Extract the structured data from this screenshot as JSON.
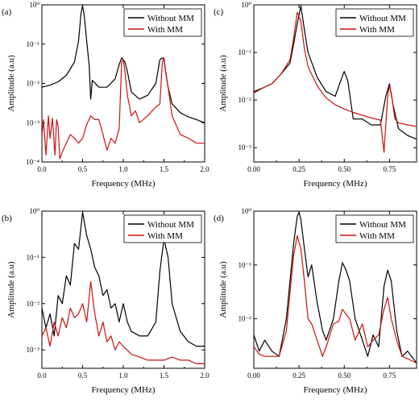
{
  "figure": {
    "xlabel": "Frequency (MHz)",
    "ylabel": "Amplitude (a.u)",
    "legend": [
      "Without MM",
      "With MM"
    ],
    "colors": {
      "without": "#000000",
      "with": "#cc1111"
    }
  },
  "chart_data": [
    {
      "panel": "(a)",
      "type": "line",
      "yscale": "log",
      "xlim": [
        0,
        2.0
      ],
      "ylim": [
        0.0001,
        1
      ],
      "xticks": [
        "0.0",
        "0.5",
        "1.0",
        "1.5",
        "2.0"
      ],
      "xtick_values": [
        0,
        0.5,
        1.0,
        1.5,
        2.0
      ],
      "yticks": [
        "10⁰",
        "10⁻¹",
        "10⁻²",
        "10⁻³",
        "10⁻⁴"
      ],
      "ytick_values": [
        1,
        0.1,
        0.01,
        0.001,
        0.0001
      ],
      "legend_position": "top-right",
      "series": [
        {
          "name": "Without MM",
          "color": "#000000",
          "x": [
            0.0,
            0.1,
            0.2,
            0.3,
            0.4,
            0.45,
            0.48,
            0.5,
            0.52,
            0.55,
            0.58,
            0.6,
            0.62,
            0.7,
            0.8,
            0.9,
            0.95,
            0.98,
            1.0,
            1.02,
            1.05,
            1.1,
            1.2,
            1.3,
            1.4,
            1.45,
            1.48,
            1.5,
            1.52,
            1.55,
            1.6,
            1.7,
            1.8,
            1.9,
            2.0
          ],
          "y": [
            0.008,
            0.009,
            0.011,
            0.016,
            0.035,
            0.12,
            0.6,
            0.95,
            0.55,
            0.12,
            0.03,
            0.004,
            0.012,
            0.008,
            0.008,
            0.013,
            0.03,
            0.045,
            0.04,
            0.035,
            0.02,
            0.006,
            0.004,
            0.005,
            0.01,
            0.04,
            0.045,
            0.04,
            0.02,
            0.008,
            0.003,
            0.0018,
            0.0014,
            0.0012,
            0.001
          ]
        },
        {
          "name": "With MM",
          "color": "#cc1111",
          "x": [
            0.0,
            0.02,
            0.05,
            0.08,
            0.1,
            0.13,
            0.16,
            0.18,
            0.2,
            0.22,
            0.25,
            0.3,
            0.35,
            0.4,
            0.45,
            0.5,
            0.55,
            0.6,
            0.65,
            0.7,
            0.75,
            0.8,
            0.85,
            0.9,
            0.95,
            0.98,
            1.0,
            1.02,
            1.05,
            1.1,
            1.15,
            1.2,
            1.3,
            1.4,
            1.45,
            1.48,
            1.5,
            1.52,
            1.55,
            1.6,
            1.7,
            1.8,
            1.9,
            2.0
          ],
          "y": [
            0.00045,
            0.0012,
            0.00015,
            0.0015,
            0.0004,
            0.0013,
            0.00015,
            0.0012,
            0.0008,
            0.00012,
            0.00018,
            0.0003,
            0.0005,
            0.0004,
            0.0003,
            0.0004,
            0.0009,
            0.0015,
            0.0012,
            0.0012,
            0.0005,
            0.0002,
            0.0004,
            0.0003,
            0.0007,
            0.035,
            0.04,
            0.02,
            0.005,
            0.0015,
            0.002,
            0.001,
            0.0015,
            0.0025,
            0.003,
            0.035,
            0.045,
            0.02,
            0.008,
            0.0015,
            0.0005,
            0.0004,
            0.0003,
            0.0003
          ]
        }
      ]
    },
    {
      "panel": "(b)",
      "type": "line",
      "yscale": "log",
      "xlim": [
        0,
        2.0
      ],
      "ylim": [
        0.0004,
        1
      ],
      "xticks": [
        "0.0",
        "0.5",
        "1.0",
        "1.5",
        "2.0"
      ],
      "xtick_values": [
        0,
        0.5,
        1.0,
        1.5,
        2.0
      ],
      "yticks": [
        "10⁰",
        "10⁻¹",
        "10⁻²",
        "10⁻³"
      ],
      "ytick_values": [
        1,
        0.1,
        0.01,
        0.001
      ],
      "legend_position": "top-right",
      "series": [
        {
          "name": "Without MM",
          "color": "#000000",
          "x": [
            0.0,
            0.05,
            0.1,
            0.15,
            0.2,
            0.25,
            0.3,
            0.35,
            0.4,
            0.45,
            0.5,
            0.55,
            0.6,
            0.65,
            0.7,
            0.75,
            0.8,
            0.85,
            0.9,
            0.95,
            1.0,
            1.05,
            1.1,
            1.2,
            1.3,
            1.4,
            1.45,
            1.5,
            1.55,
            1.6,
            1.7,
            1.8,
            1.9,
            2.0
          ],
          "y": [
            0.008,
            0.003,
            0.006,
            0.002,
            0.015,
            0.01,
            0.04,
            0.025,
            0.2,
            0.15,
            0.95,
            0.3,
            0.15,
            0.06,
            0.04,
            0.015,
            0.02,
            0.008,
            0.01,
            0.004,
            0.01,
            0.004,
            0.0025,
            0.002,
            0.002,
            0.004,
            0.05,
            0.25,
            0.1,
            0.01,
            0.0025,
            0.0015,
            0.0012,
            0.0012
          ]
        },
        {
          "name": "With MM",
          "color": "#cc1111",
          "x": [
            0.0,
            0.05,
            0.1,
            0.15,
            0.2,
            0.25,
            0.3,
            0.35,
            0.4,
            0.45,
            0.5,
            0.55,
            0.6,
            0.65,
            0.7,
            0.75,
            0.8,
            0.85,
            0.9,
            0.95,
            1.0,
            1.1,
            1.2,
            1.3,
            1.4,
            1.5,
            1.6,
            1.7,
            1.8,
            1.9,
            2.0
          ],
          "y": [
            0.002,
            0.003,
            0.0012,
            0.004,
            0.002,
            0.005,
            0.003,
            0.008,
            0.005,
            0.006,
            0.01,
            0.004,
            0.03,
            0.006,
            0.002,
            0.004,
            0.0015,
            0.002,
            0.001,
            0.0015,
            0.0012,
            0.0008,
            0.0007,
            0.0006,
            0.0006,
            0.0006,
            0.0007,
            0.0006,
            0.0006,
            0.0005,
            0.0005
          ]
        }
      ]
    },
    {
      "panel": "(c)",
      "type": "line",
      "yscale": "log",
      "xlim": [
        0,
        0.9
      ],
      "ylim": [
        0.0005,
        1
      ],
      "xticks": [
        "0.00",
        "0.25",
        "0.50",
        "0.75"
      ],
      "xtick_values": [
        0,
        0.25,
        0.5,
        0.75
      ],
      "yticks": [
        "10⁰",
        "10⁻¹",
        "10⁻²",
        "10⁻³"
      ],
      "ytick_values": [
        1,
        0.1,
        0.01,
        0.001
      ],
      "legend_position": "top-right",
      "series": [
        {
          "name": "Without MM",
          "color": "#000000",
          "x": [
            0.0,
            0.05,
            0.1,
            0.15,
            0.2,
            0.22,
            0.24,
            0.26,
            0.28,
            0.3,
            0.35,
            0.4,
            0.45,
            0.48,
            0.5,
            0.52,
            0.55,
            0.6,
            0.65,
            0.7,
            0.73,
            0.75,
            0.77,
            0.8,
            0.85,
            0.9
          ],
          "y": [
            0.015,
            0.018,
            0.022,
            0.035,
            0.06,
            0.15,
            0.4,
            0.95,
            0.3,
            0.1,
            0.03,
            0.015,
            0.012,
            0.025,
            0.04,
            0.025,
            0.004,
            0.004,
            0.003,
            0.003,
            0.012,
            0.022,
            0.008,
            0.0025,
            0.0018,
            0.0015
          ]
        },
        {
          "name": "With MM",
          "color": "#cc1111",
          "x": [
            0.0,
            0.05,
            0.1,
            0.15,
            0.2,
            0.22,
            0.24,
            0.26,
            0.28,
            0.3,
            0.35,
            0.4,
            0.45,
            0.5,
            0.55,
            0.6,
            0.65,
            0.7,
            0.72,
            0.74,
            0.75,
            0.76,
            0.78,
            0.8,
            0.85,
            0.9
          ],
          "y": [
            0.014,
            0.018,
            0.022,
            0.035,
            0.07,
            0.2,
            0.7,
            0.45,
            0.12,
            0.05,
            0.02,
            0.011,
            0.008,
            0.0065,
            0.0055,
            0.0048,
            0.0042,
            0.0038,
            0.0008,
            0.012,
            0.02,
            0.014,
            0.004,
            0.0033,
            0.003,
            0.0028
          ]
        }
      ]
    },
    {
      "panel": "(d)",
      "type": "line",
      "yscale": "log",
      "xlim": [
        0,
        0.9
      ],
      "ylim": [
        0.0012,
        1
      ],
      "xticks": [
        "0.00",
        "0.25",
        "0.50",
        "0.75"
      ],
      "xtick_values": [
        0,
        0.25,
        0.5,
        0.75
      ],
      "yticks": [
        "10⁰",
        "10⁻¹",
        "10⁻²"
      ],
      "ytick_values": [
        1,
        0.1,
        0.01
      ],
      "legend_position": "top-right",
      "series": [
        {
          "name": "Without MM",
          "color": "#000000",
          "x": [
            0.0,
            0.03,
            0.06,
            0.1,
            0.14,
            0.18,
            0.2,
            0.22,
            0.24,
            0.25,
            0.26,
            0.28,
            0.3,
            0.32,
            0.35,
            0.38,
            0.4,
            0.44,
            0.47,
            0.49,
            0.51,
            0.53,
            0.56,
            0.6,
            0.63,
            0.66,
            0.69,
            0.72,
            0.74,
            0.76,
            0.79,
            0.82,
            0.85,
            0.9
          ],
          "y": [
            0.005,
            0.0025,
            0.004,
            0.0025,
            0.002,
            0.01,
            0.05,
            0.25,
            0.8,
            0.95,
            0.7,
            0.2,
            0.06,
            0.1,
            0.02,
            0.006,
            0.004,
            0.01,
            0.05,
            0.11,
            0.08,
            0.05,
            0.01,
            0.004,
            0.002,
            0.005,
            0.003,
            0.04,
            0.08,
            0.05,
            0.006,
            0.002,
            0.0025,
            0.0015
          ]
        },
        {
          "name": "With MM",
          "color": "#cc1111",
          "x": [
            0.0,
            0.03,
            0.06,
            0.1,
            0.14,
            0.18,
            0.2,
            0.22,
            0.24,
            0.26,
            0.28,
            0.3,
            0.32,
            0.35,
            0.38,
            0.4,
            0.44,
            0.47,
            0.49,
            0.51,
            0.53,
            0.56,
            0.6,
            0.63,
            0.66,
            0.69,
            0.72,
            0.74,
            0.76,
            0.79,
            0.82,
            0.85,
            0.9
          ],
          "y": [
            0.003,
            0.0022,
            0.002,
            0.002,
            0.002,
            0.006,
            0.03,
            0.15,
            0.35,
            0.2,
            0.05,
            0.01,
            0.008,
            0.004,
            0.002,
            0.003,
            0.008,
            0.009,
            0.015,
            0.012,
            0.01,
            0.004,
            0.008,
            0.003,
            0.004,
            0.005,
            0.015,
            0.025,
            0.01,
            0.004,
            0.002,
            0.0018,
            0.0015
          ]
        }
      ]
    }
  ]
}
